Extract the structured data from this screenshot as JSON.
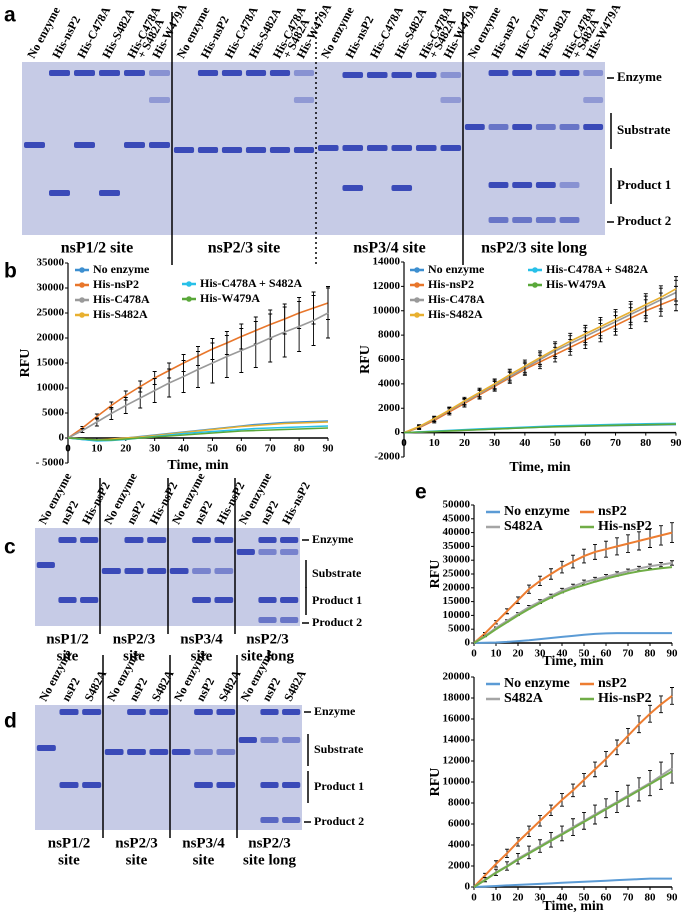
{
  "panels": [
    "a",
    "b",
    "c",
    "d",
    "e"
  ],
  "gel_labels": {
    "enzyme": "Enzyme",
    "substrate": "Substrate",
    "product1": "Product 1",
    "product2": "Product 2"
  },
  "gel_a": {
    "lanes": [
      "No enzyme",
      "His-nsP2",
      "His-C478A",
      "His-S482A",
      [
        "His-C478A",
        "+ S482A"
      ],
      "His-W479A"
    ],
    "sites": [
      "nsP1/2 site",
      "nsP2/3 site",
      "nsP3/4 site",
      "nsP2/3 site long"
    ]
  },
  "gel_c": {
    "lanes": [
      "No enzyme",
      "nsP2",
      "His-nsP2"
    ],
    "sites": [
      [
        "nsP1/2",
        "site"
      ],
      [
        "nsP2/3",
        "site"
      ],
      [
        "nsP3/4",
        "site"
      ],
      [
        "nsP2/3",
        "site long"
      ]
    ]
  },
  "gel_d": {
    "lanes": [
      "No enzyme",
      "nsP2",
      "S482A"
    ],
    "sites": [
      [
        "nsP1/2",
        "site"
      ],
      [
        "nsP2/3",
        "site"
      ],
      [
        "nsP3/4",
        "site"
      ],
      [
        "nsP2/3",
        "site long"
      ]
    ]
  },
  "chart_data": [
    {
      "type": "line",
      "xlabel": "Time, min",
      "ylabel": "RFU",
      "legend": "upper left",
      "x": [
        0,
        5,
        10,
        15,
        20,
        25,
        30,
        35,
        40,
        45,
        50,
        55,
        60,
        65,
        70,
        75,
        80,
        85,
        90
      ],
      "xlim": [
        0,
        90
      ],
      "xticks": [
        0,
        10,
        20,
        30,
        40,
        50,
        60,
        70,
        80,
        90
      ],
      "ylim": [
        -5000,
        35000
      ],
      "yticks": [
        {
          "value": -5000,
          "label": "- 5000"
        },
        0,
        5000,
        10000,
        15000,
        20000,
        25000,
        30000,
        35000
      ],
      "series": [
        {
          "name": "No enzyme",
          "color": "#3d8fd0",
          "values": [
            0,
            -300,
            -500,
            -300,
            0,
            300,
            600,
            900,
            1200,
            1500,
            1800,
            2100,
            2400,
            2700,
            2900,
            3100,
            3200,
            3300,
            3400
          ]
        },
        {
          "name": "His-nsP2",
          "color": "#e8762b",
          "values": [
            0,
            2000,
            4300,
            6500,
            8500,
            10300,
            12000,
            13500,
            15000,
            16400,
            17800,
            19000,
            20300,
            21500,
            22700,
            23800,
            25000,
            26000,
            27000
          ],
          "errors": [
            0,
            300,
            500,
            700,
            900,
            1100,
            1300,
            1500,
            1700,
            1900,
            2100,
            2300,
            2500,
            2700,
            2900,
            3000,
            3100,
            3200,
            3300
          ]
        },
        {
          "name": "His-C478A",
          "color": "#9a9a9a",
          "values": [
            0,
            1500,
            3200,
            4900,
            6500,
            8000,
            9500,
            11000,
            12300,
            13700,
            15000,
            16300,
            17500,
            18700,
            20000,
            21200,
            22300,
            23500,
            25000
          ],
          "errors": [
            0,
            400,
            800,
            1200,
            1600,
            2000,
            2400,
            2800,
            3200,
            3600,
            4000,
            4200,
            4400,
            4600,
            4800,
            5000,
            5000,
            5000,
            5000
          ]
        },
        {
          "name": "His-S482A",
          "color": "#e8b030",
          "values": [
            0,
            -200,
            -400,
            -200,
            0,
            200,
            500,
            800,
            1100,
            1400,
            1700,
            2000,
            2300,
            2500,
            2700,
            2900,
            3000,
            3100,
            3200
          ]
        },
        {
          "name": "His-C478A + S482A",
          "color": "#28c0e8",
          "values": [
            0,
            -300,
            -600,
            -500,
            -300,
            0,
            300,
            600,
            900,
            1100,
            1300,
            1500,
            1700,
            1900,
            2000,
            2100,
            2200,
            2300,
            2400
          ]
        },
        {
          "name": "His-W479A",
          "color": "#5aa83a",
          "values": [
            0,
            -200,
            -400,
            -400,
            -200,
            0,
            200,
            400,
            600,
            800,
            1000,
            1200,
            1400,
            1500,
            1600,
            1700,
            1800,
            1900,
            2000
          ]
        }
      ]
    },
    {
      "type": "line",
      "xlabel": "Time, min",
      "ylabel": "RFU",
      "legend": "upper left",
      "x": [
        0,
        5,
        10,
        15,
        20,
        25,
        30,
        35,
        40,
        45,
        50,
        55,
        60,
        65,
        70,
        75,
        80,
        85,
        90
      ],
      "xlim": [
        0,
        90
      ],
      "xticks": [
        0,
        10,
        20,
        30,
        40,
        50,
        60,
        70,
        80,
        90
      ],
      "ylim": [
        -2000,
        14000
      ],
      "yticks": [
        -2000,
        0,
        2000,
        4000,
        6000,
        8000,
        10000,
        12000,
        14000
      ],
      "series": [
        {
          "name": "No enzyme",
          "color": "#3d8fd0",
          "values": [
            0,
            50,
            100,
            150,
            200,
            250,
            300,
            350,
            400,
            450,
            500,
            520,
            540,
            560,
            580,
            600,
            620,
            640,
            660
          ]
        },
        {
          "name": "His-nsP2",
          "color": "#e8762b",
          "values": [
            0,
            400,
            1000,
            1700,
            2400,
            3100,
            3800,
            4500,
            5200,
            5800,
            6400,
            7000,
            7600,
            8200,
            8800,
            9400,
            10000,
            10500,
            11000
          ],
          "errors": [
            0,
            150,
            200,
            250,
            300,
            350,
            400,
            450,
            500,
            550,
            600,
            650,
            700,
            750,
            800,
            850,
            900,
            950,
            1000
          ]
        },
        {
          "name": "His-C478A",
          "color": "#9a9a9a",
          "values": [
            0,
            450,
            1100,
            1800,
            2500,
            3200,
            3900,
            4600,
            5300,
            6000,
            6700,
            7300,
            7900,
            8500,
            9100,
            9700,
            10300,
            10900,
            11500
          ],
          "errors": [
            0,
            150,
            200,
            250,
            300,
            350,
            400,
            450,
            500,
            550,
            600,
            650,
            700,
            750,
            800,
            850,
            900,
            950,
            1000
          ]
        },
        {
          "name": "His-S482A",
          "color": "#e8b030",
          "values": [
            0,
            500,
            1150,
            1850,
            2600,
            3300,
            4000,
            4750,
            5450,
            6150,
            6850,
            7500,
            8100,
            8700,
            9300,
            9900,
            10500,
            11100,
            11800
          ],
          "errors": [
            0,
            150,
            200,
            250,
            300,
            350,
            400,
            450,
            500,
            550,
            600,
            650,
            700,
            750,
            800,
            850,
            900,
            950,
            1000
          ]
        },
        {
          "name": "His-C478A + S482A",
          "color": "#28c0e8",
          "values": [
            0,
            60,
            120,
            180,
            240,
            300,
            350,
            400,
            450,
            500,
            550,
            580,
            610,
            640,
            670,
            700,
            720,
            740,
            760
          ]
        },
        {
          "name": "His-W479A",
          "color": "#5aa83a",
          "values": [
            0,
            40,
            90,
            140,
            190,
            240,
            290,
            340,
            390,
            440,
            480,
            510,
            540,
            570,
            600,
            630,
            650,
            670,
            700
          ]
        }
      ]
    },
    {
      "type": "line",
      "xlabel": "Time, min",
      "ylabel": "RFU",
      "legend": "upper left",
      "x": [
        0,
        5,
        10,
        15,
        20,
        25,
        30,
        35,
        40,
        45,
        50,
        55,
        60,
        65,
        70,
        75,
        80,
        85,
        90
      ],
      "xlim": [
        0,
        90
      ],
      "xticks": [
        0,
        10,
        20,
        30,
        40,
        50,
        60,
        70,
        80,
        90
      ],
      "ylim": [
        0,
        50000
      ],
      "yticks": [
        0,
        5000,
        10000,
        15000,
        20000,
        25000,
        30000,
        35000,
        40000,
        45000,
        50000
      ],
      "series": [
        {
          "name": "No enzyme",
          "color": "#5b9bd5",
          "values": [
            0,
            100,
            200,
            400,
            700,
            1000,
            1400,
            1800,
            2200,
            2600,
            3000,
            3300,
            3500,
            3600,
            3600,
            3600,
            3600,
            3600,
            3600
          ]
        },
        {
          "name": "nsP2",
          "color": "#ed7d31",
          "values": [
            0,
            3500,
            7500,
            11500,
            15500,
            19500,
            22500,
            25000,
            27500,
            29500,
            31500,
            33000,
            34000,
            35000,
            36000,
            37000,
            38000,
            39000,
            40000
          ],
          "errors": [
            0,
            300,
            600,
            900,
            1200,
            1500,
            1700,
            1900,
            2100,
            2300,
            2500,
            2700,
            2900,
            3100,
            3200,
            3300,
            3400,
            3500,
            3600
          ]
        },
        {
          "name": "S482A",
          "color": "#a5a5a5",
          "values": [
            0,
            2500,
            5500,
            8000,
            10500,
            13000,
            15000,
            17000,
            19000,
            20500,
            22000,
            23000,
            24000,
            25000,
            26000,
            27000,
            27800,
            28400,
            29000
          ],
          "errors": [
            0,
            200,
            300,
            400,
            500,
            600,
            700,
            700,
            800,
            800,
            800,
            800,
            800,
            800,
            800,
            800,
            800,
            800,
            800
          ]
        },
        {
          "name": "His-nsP2",
          "color": "#70ad47",
          "values": [
            0,
            2300,
            5000,
            7500,
            10000,
            12300,
            14500,
            16500,
            18300,
            19800,
            21000,
            22200,
            23300,
            24300,
            25200,
            26000,
            26600,
            27100,
            27500
          ]
        }
      ]
    },
    {
      "type": "line",
      "xlabel": "Time, min",
      "ylabel": "RFU",
      "legend": "upper left",
      "x": [
        0,
        5,
        10,
        15,
        20,
        25,
        30,
        35,
        40,
        45,
        50,
        55,
        60,
        65,
        70,
        75,
        80,
        85,
        90
      ],
      "xlim": [
        0,
        90
      ],
      "xticks": [
        0,
        10,
        20,
        30,
        40,
        50,
        60,
        70,
        80,
        90
      ],
      "ylim": [
        0,
        20000
      ],
      "yticks": [
        0,
        2000,
        4000,
        6000,
        8000,
        10000,
        12000,
        14000,
        16000,
        18000,
        20000
      ],
      "series": [
        {
          "name": "No enzyme",
          "color": "#5b9bd5",
          "values": [
            0,
            50,
            100,
            150,
            200,
            250,
            300,
            350,
            400,
            450,
            500,
            550,
            600,
            650,
            700,
            750,
            800,
            800,
            800
          ]
        },
        {
          "name": "nsP2",
          "color": "#ed7d31",
          "values": [
            0,
            1100,
            2200,
            3200,
            4300,
            5300,
            6300,
            7300,
            8300,
            9200,
            10200,
            11200,
            12200,
            13300,
            14400,
            15500,
            16500,
            17400,
            18200
          ],
          "errors": [
            0,
            200,
            300,
            400,
            400,
            500,
            500,
            500,
            600,
            600,
            600,
            700,
            700,
            700,
            700,
            800,
            800,
            800,
            800
          ]
        },
        {
          "name": "S482A",
          "color": "#a5a5a5",
          "values": [
            0,
            700,
            1400,
            2000,
            2700,
            3300,
            3900,
            4500,
            5100,
            5700,
            6300,
            6900,
            7500,
            8100,
            8700,
            9300,
            9900,
            10600,
            11300
          ],
          "errors": [
            0,
            200,
            300,
            400,
            500,
            600,
            600,
            700,
            700,
            800,
            800,
            900,
            900,
            1000,
            1000,
            1100,
            1200,
            1300,
            1400
          ]
        },
        {
          "name": "His-nsP2",
          "color": "#70ad47",
          "values": [
            0,
            650,
            1350,
            1950,
            2600,
            3200,
            3800,
            4400,
            5000,
            5600,
            6200,
            6800,
            7400,
            8000,
            8600,
            9200,
            9800,
            10400,
            11000
          ]
        }
      ]
    }
  ]
}
